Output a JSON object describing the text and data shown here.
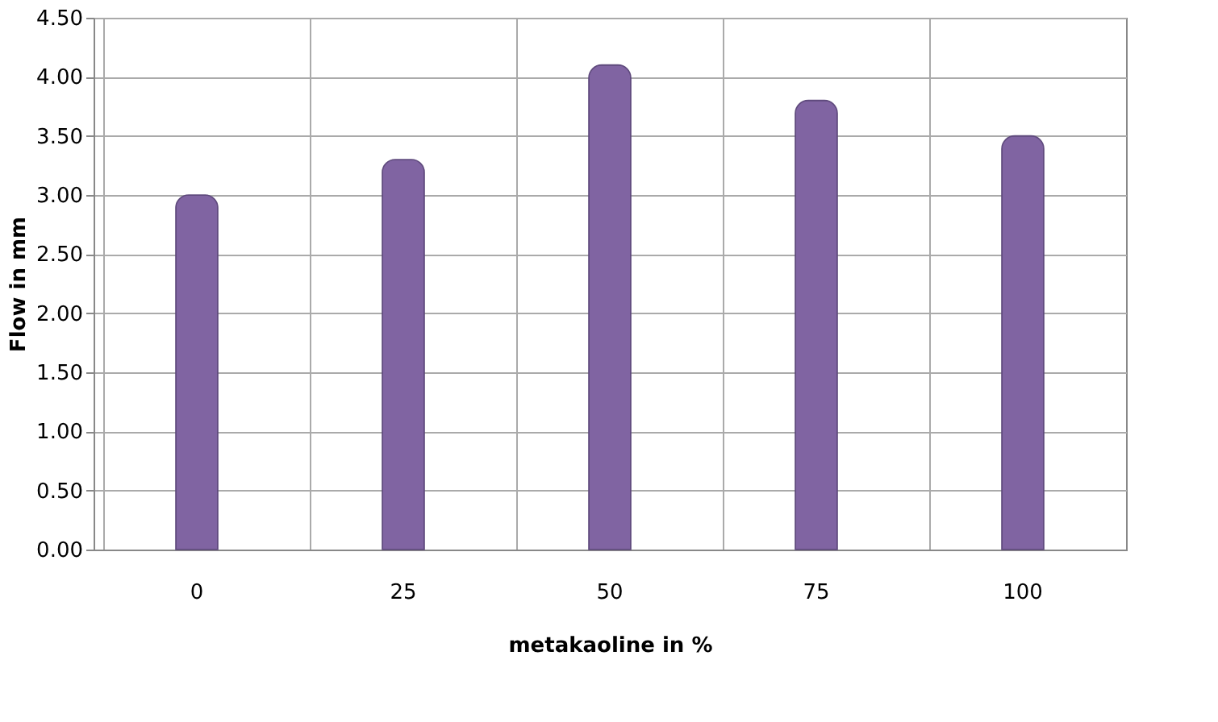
{
  "chart_data": {
    "type": "bar",
    "xlabel": "metakaoline in %",
    "ylabel": "Flow in mm",
    "categories": [
      "0",
      "25",
      "50",
      "75",
      "100"
    ],
    "values": [
      3.0,
      3.3,
      4.1,
      3.8,
      3.5
    ],
    "color": "#8064a2",
    "ylim": [
      0,
      4.5
    ],
    "yticks": [
      {
        "value": 0,
        "label": "0.00"
      },
      {
        "value": 0.5,
        "label": "0.50"
      },
      {
        "value": 1,
        "label": "1.00"
      },
      {
        "value": 1.5,
        "label": "1.50"
      },
      {
        "value": 2,
        "label": "2.00"
      },
      {
        "value": 2.5,
        "label": "2.50"
      },
      {
        "value": 3,
        "label": "3.00"
      },
      {
        "value": 3.5,
        "label": "3.50"
      },
      {
        "value": 4,
        "label": "4.00"
      },
      {
        "value": 4.5,
        "label": "4.50"
      }
    ],
    "grid": true
  }
}
